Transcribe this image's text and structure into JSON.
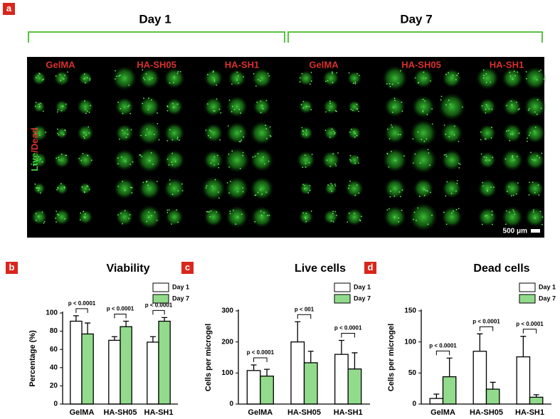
{
  "panel_a": {
    "label": "a",
    "days": [
      "Day 1",
      "Day 7"
    ],
    "materials": [
      "GelMA",
      "HA-SH05",
      "HA-SH1",
      "GelMA",
      "HA-SH05",
      "HA-SH1"
    ],
    "stain_live": "Live",
    "stain_dead": "/Dead",
    "scale_bar": "500 μm"
  },
  "chart_data": [
    {
      "type": "bar",
      "panel": "b",
      "title": "Viability",
      "y_label": "Percentage (%)",
      "categories": [
        "GelMA",
        "HA-SH05",
        "HA-SH1"
      ],
      "series": [
        {
          "name": "Day 1",
          "color": "#ffffff",
          "values": [
            91,
            70,
            68
          ],
          "errors": [
            6,
            4,
            6
          ]
        },
        {
          "name": "Day 7",
          "color": "#92db8c",
          "values": [
            77,
            85,
            91
          ],
          "errors": [
            12,
            6,
            4
          ]
        }
      ],
      "annotations": [
        "p < 0.0001",
        "p < 0.0001",
        "p < 0.0001"
      ],
      "ylim": [
        0,
        100
      ],
      "yticks": [
        0,
        20,
        40,
        60,
        80,
        100
      ]
    },
    {
      "type": "bar",
      "panel": "c",
      "title": "Live cells",
      "y_label": "Cells per microgel",
      "categories": [
        "GelMA",
        "HA-SH05",
        "HA-SH1"
      ],
      "series": [
        {
          "name": "Day 1",
          "color": "#ffffff",
          "values": [
            108,
            200,
            160
          ],
          "errors": [
            18,
            65,
            45
          ]
        },
        {
          "name": "Day 7",
          "color": "#92db8c",
          "values": [
            90,
            133,
            113
          ],
          "errors": [
            22,
            37,
            52
          ]
        }
      ],
      "annotations": [
        "p < 0.0001",
        "p < 001",
        "p < 0.0001"
      ],
      "ylim": [
        0,
        300
      ],
      "yticks": [
        0,
        100,
        200,
        300
      ]
    },
    {
      "type": "bar",
      "panel": "d",
      "title": "Dead cells",
      "y_label": "Cells per microgel",
      "categories": [
        "GelMA",
        "HA-SH05",
        "HA-SH1"
      ],
      "series": [
        {
          "name": "Day 1",
          "color": "#ffffff",
          "values": [
            9,
            85,
            76
          ],
          "errors": [
            7,
            28,
            33
          ]
        },
        {
          "name": "Day 7",
          "color": "#92db8c",
          "values": [
            44,
            24,
            11
          ],
          "errors": [
            30,
            11,
            4
          ]
        }
      ],
      "annotations": [
        "p < 0.0001",
        "p < 0.0001",
        "p < 0.0001"
      ],
      "ylim": [
        0,
        150
      ],
      "yticks": [
        0,
        50,
        100,
        150
      ]
    }
  ]
}
